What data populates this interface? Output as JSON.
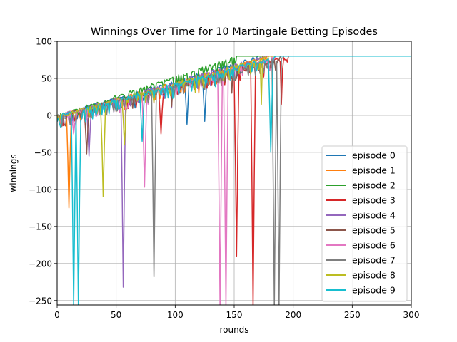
{
  "chart_data": {
    "type": "line",
    "title": "Winnings Over Time for 10 Martingale Betting Episodes",
    "xlabel": "rounds",
    "ylabel": "winnings",
    "xlim": [
      0,
      300
    ],
    "ylim": [
      -256,
      100
    ],
    "x_ticks": [
      0,
      50,
      100,
      150,
      200,
      250,
      300
    ],
    "y_ticks": [
      100,
      50,
      0,
      -50,
      -100,
      -150,
      -200,
      -250
    ],
    "x_tick_labels": [
      "0",
      "50",
      "100",
      "150",
      "200",
      "250",
      "300"
    ],
    "y_tick_labels": [
      "100",
      "50",
      "0",
      "−50",
      "−100",
      "−150",
      "−200",
      "−250"
    ],
    "grid": true,
    "legend_position": "lower right",
    "series": [
      {
        "name": "episode 0",
        "color": "#1f77b4",
        "reach80": 170,
        "dips": [
          [
            110,
            -12
          ],
          [
            125,
            -8
          ],
          [
            66,
            10
          ],
          [
            30,
            12
          ]
        ]
      },
      {
        "name": "episode 1",
        "color": "#ff7f0e",
        "reach80": 178,
        "dips": [
          [
            10,
            -125
          ],
          [
            5,
            -5
          ],
          [
            120,
            30
          ]
        ]
      },
      {
        "name": "episode 2",
        "color": "#2ca02c",
        "reach80": 152,
        "dips": [
          [
            20,
            5
          ],
          [
            60,
            22
          ],
          [
            100,
            40
          ]
        ]
      },
      {
        "name": "episode 3",
        "color": "#d62728",
        "reach80": 196,
        "dips": [
          [
            88,
            -25
          ],
          [
            152,
            -190
          ],
          [
            166,
            -260
          ],
          [
            190,
            15
          ],
          [
            195,
            72
          ]
        ]
      },
      {
        "name": "episode 4",
        "color": "#9467bd",
        "reach80": 175,
        "dips": [
          [
            27,
            -55
          ],
          [
            56,
            -232
          ],
          [
            97,
            10
          ],
          [
            130,
            40
          ]
        ]
      },
      {
        "name": "episode 5",
        "color": "#8c564b",
        "reach80": 190,
        "dips": [
          [
            25,
            -52
          ],
          [
            50,
            5
          ],
          [
            97,
            12
          ],
          [
            148,
            30
          ]
        ]
      },
      {
        "name": "episode 6",
        "color": "#e377c2",
        "reach80": 185,
        "dips": [
          [
            14,
            -25
          ],
          [
            74,
            -97
          ],
          [
            138,
            -260
          ],
          [
            143,
            -260
          ]
        ]
      },
      {
        "name": "episode 7",
        "color": "#7f7f7f",
        "reach80": 192,
        "dips": [
          [
            82,
            -218
          ],
          [
            184,
            -260
          ],
          [
            188,
            -260
          ]
        ]
      },
      {
        "name": "episode 8",
        "color": "#bcbd22",
        "reach80": 180,
        "dips": [
          [
            39,
            -110
          ],
          [
            57,
            -40
          ],
          [
            173,
            15
          ]
        ]
      },
      {
        "name": "episode 9",
        "color": "#17becf",
        "reach80": 185,
        "dips": [
          [
            14,
            -260
          ],
          [
            18,
            -260
          ],
          [
            72,
            -35
          ],
          [
            181,
            -50
          ]
        ]
      }
    ]
  }
}
